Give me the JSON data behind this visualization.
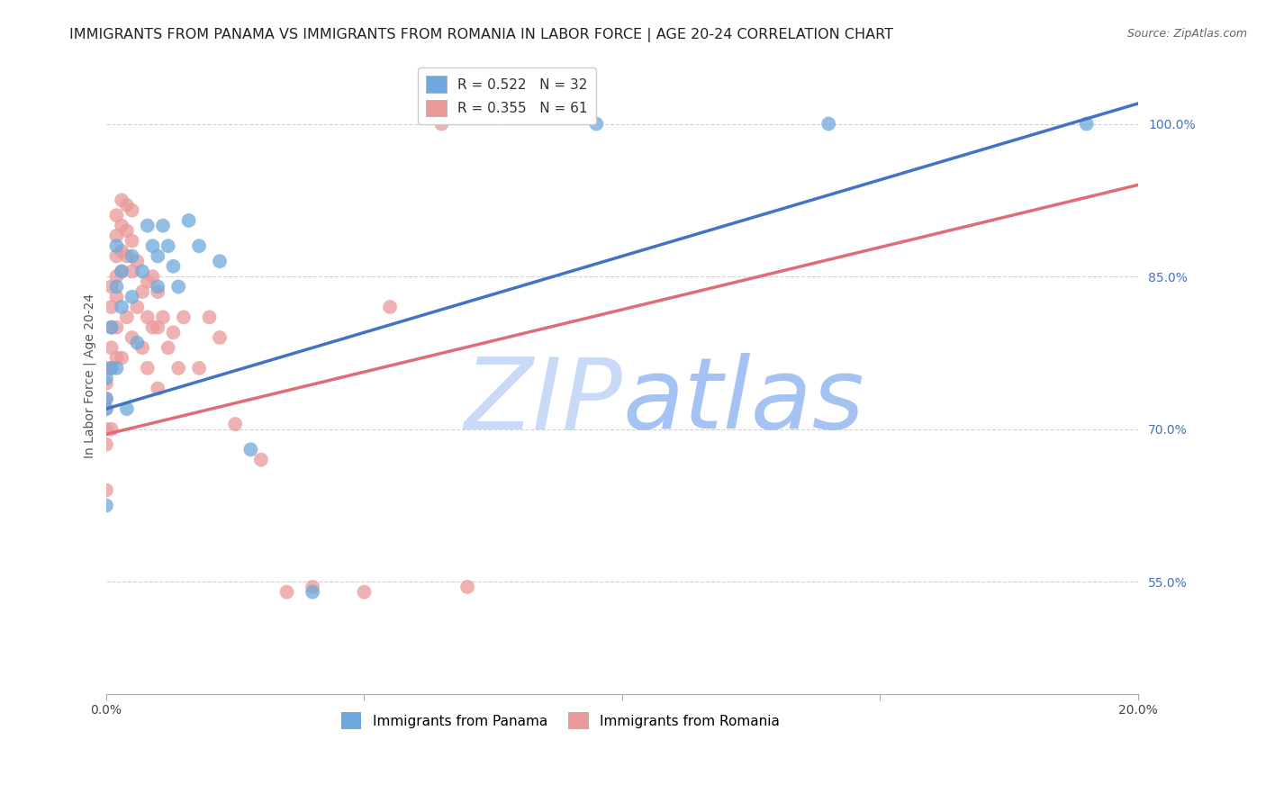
{
  "title": "IMMIGRANTS FROM PANAMA VS IMMIGRANTS FROM ROMANIA IN LABOR FORCE | AGE 20-24 CORRELATION CHART",
  "source": "Source: ZipAtlas.com",
  "xlabel": "",
  "ylabel": "In Labor Force | Age 20-24",
  "x_min": 0.0,
  "x_max": 0.2,
  "y_min": 0.44,
  "y_max": 1.065,
  "panama_color": "#6fa8dc",
  "romania_color": "#ea9999",
  "panama_line_color": "#4472c4",
  "romania_line_color": "#e06c75",
  "panama_R": 0.522,
  "panama_N": 32,
  "romania_R": 0.355,
  "romania_N": 61,
  "watermark_zip_color": "#c9daf8",
  "watermark_atlas_color": "#a4c2f4",
  "background_color": "#ffffff",
  "grid_color": "#cccccc",
  "title_fontsize": 11.5,
  "axis_label_fontsize": 10,
  "tick_fontsize": 10,
  "legend_fontsize": 11,
  "panama_x": [
    0.0,
    0.0,
    0.0,
    0.0,
    0.001,
    0.001,
    0.002,
    0.002,
    0.002,
    0.003,
    0.003,
    0.004,
    0.005,
    0.005,
    0.006,
    0.007,
    0.008,
    0.009,
    0.01,
    0.01,
    0.011,
    0.012,
    0.013,
    0.014,
    0.016,
    0.018,
    0.022,
    0.028,
    0.04,
    0.095,
    0.14,
    0.19
  ],
  "panama_y": [
    0.75,
    0.73,
    0.72,
    0.625,
    0.8,
    0.76,
    0.88,
    0.84,
    0.76,
    0.855,
    0.82,
    0.72,
    0.87,
    0.83,
    0.785,
    0.855,
    0.9,
    0.88,
    0.87,
    0.84,
    0.9,
    0.88,
    0.86,
    0.84,
    0.905,
    0.88,
    0.865,
    0.68,
    0.54,
    1.0,
    1.0,
    1.0
  ],
  "romania_x": [
    0.0,
    0.0,
    0.0,
    0.0,
    0.0,
    0.0,
    0.0,
    0.001,
    0.001,
    0.001,
    0.001,
    0.001,
    0.001,
    0.002,
    0.002,
    0.002,
    0.002,
    0.002,
    0.002,
    0.002,
    0.003,
    0.003,
    0.003,
    0.003,
    0.003,
    0.004,
    0.004,
    0.004,
    0.004,
    0.005,
    0.005,
    0.005,
    0.005,
    0.006,
    0.006,
    0.007,
    0.007,
    0.008,
    0.008,
    0.008,
    0.009,
    0.009,
    0.01,
    0.01,
    0.01,
    0.011,
    0.012,
    0.013,
    0.014,
    0.015,
    0.018,
    0.02,
    0.022,
    0.025,
    0.03,
    0.035,
    0.04,
    0.05,
    0.055,
    0.065,
    0.07
  ],
  "romania_y": [
    0.76,
    0.745,
    0.73,
    0.72,
    0.7,
    0.685,
    0.64,
    0.84,
    0.82,
    0.8,
    0.78,
    0.76,
    0.7,
    0.91,
    0.89,
    0.87,
    0.85,
    0.83,
    0.8,
    0.77,
    0.925,
    0.9,
    0.875,
    0.855,
    0.77,
    0.92,
    0.895,
    0.87,
    0.81,
    0.915,
    0.885,
    0.855,
    0.79,
    0.865,
    0.82,
    0.835,
    0.78,
    0.845,
    0.81,
    0.76,
    0.85,
    0.8,
    0.835,
    0.8,
    0.74,
    0.81,
    0.78,
    0.795,
    0.76,
    0.81,
    0.76,
    0.81,
    0.79,
    0.705,
    0.67,
    0.54,
    0.545,
    0.54,
    0.82,
    1.0,
    0.545
  ]
}
